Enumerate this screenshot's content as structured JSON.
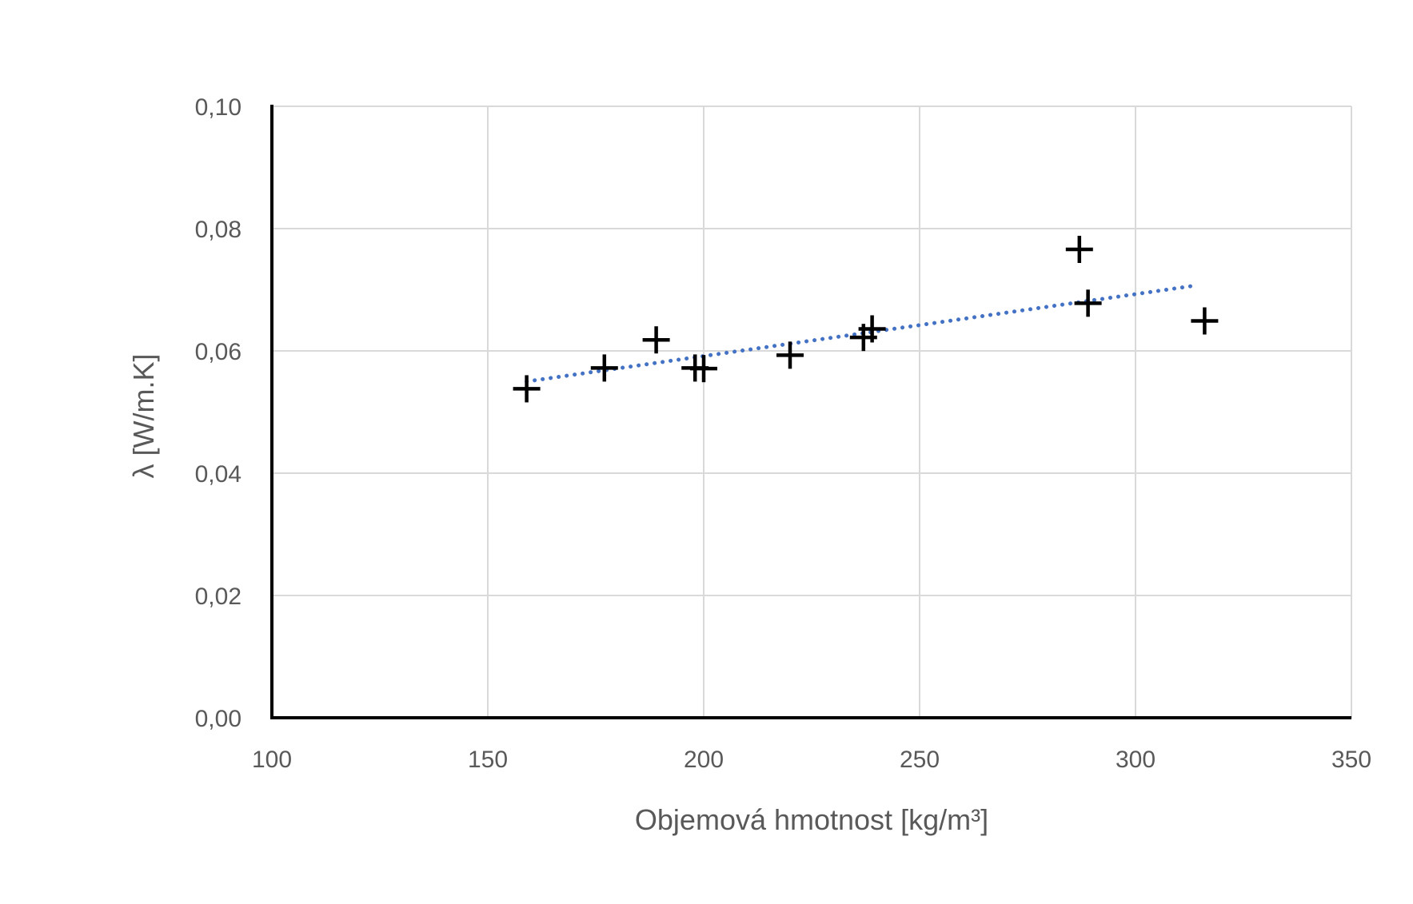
{
  "chart_data": {
    "type": "scatter",
    "xlabel": "Objemová hmotnost [kg/m³]",
    "ylabel": "λ [W/m.K]",
    "xlim": [
      100,
      350
    ],
    "ylim": [
      0,
      0.1
    ],
    "x_ticks": [
      100,
      150,
      200,
      250,
      300,
      350
    ],
    "x_tick_labels": [
      "100",
      "150",
      "200",
      "250",
      "300",
      "350"
    ],
    "y_ticks": [
      0,
      0.02,
      0.04,
      0.06,
      0.08,
      0.1
    ],
    "y_tick_labels": [
      "0,00",
      "0,02",
      "0,04",
      "0,06",
      "0,08",
      "0,10"
    ],
    "grid": true,
    "series": [
      {
        "marker": "plus",
        "color": "#000000",
        "points": [
          {
            "x": 159,
            "y": 0.0538
          },
          {
            "x": 177,
            "y": 0.0572
          },
          {
            "x": 189,
            "y": 0.0618
          },
          {
            "x": 198,
            "y": 0.0572
          },
          {
            "x": 200,
            "y": 0.0571
          },
          {
            "x": 220,
            "y": 0.0593
          },
          {
            "x": 237,
            "y": 0.0622
          },
          {
            "x": 239,
            "y": 0.0636
          },
          {
            "x": 287,
            "y": 0.0766
          },
          {
            "x": 289,
            "y": 0.0678
          },
          {
            "x": 316,
            "y": 0.0649
          }
        ]
      }
    ],
    "trendline": {
      "type": "linear",
      "style": "dotted",
      "color": "#4472c4",
      "x_start": 159,
      "y_start": 0.055,
      "x_end": 314,
      "y_end": 0.0707
    }
  }
}
